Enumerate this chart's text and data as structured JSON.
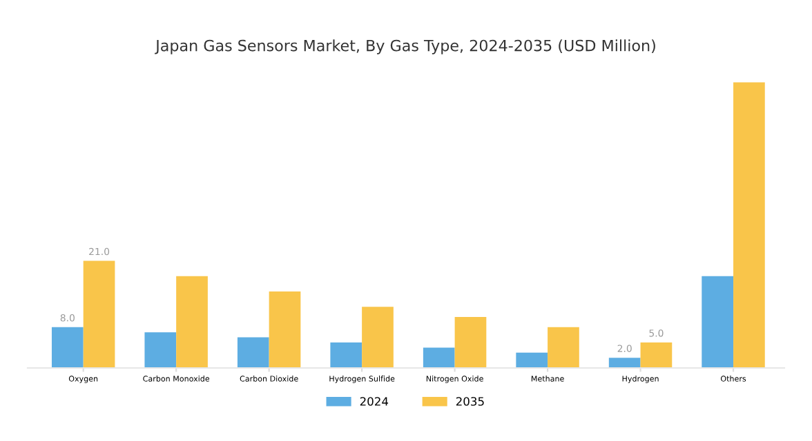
{
  "chart_data": {
    "type": "bar",
    "title": "Japan Gas Sensors Market, By Gas Type, 2024-2035 (USD Million)",
    "categories": [
      "Oxygen",
      "Carbon Monoxide",
      "Carbon Dioxide",
      "Hydrogen Sulfide",
      "Nitrogen Oxide",
      "Methane",
      "Hydrogen",
      "Others"
    ],
    "series": [
      {
        "name": "2024",
        "color": "#5dade2",
        "values": [
          8.0,
          7.0,
          6.0,
          5.0,
          4.0,
          3.0,
          2.0,
          18.0
        ],
        "value_labels": [
          "8.0",
          null,
          null,
          null,
          null,
          null,
          "2.0",
          null
        ]
      },
      {
        "name": "2035",
        "color": "#f9c54a",
        "values": [
          21.0,
          18.0,
          15.0,
          12.0,
          10.0,
          8.0,
          5.0,
          56.0
        ],
        "value_labels": [
          "21.0",
          null,
          null,
          null,
          null,
          null,
          "5.0",
          null
        ]
      }
    ],
    "tick_labels": "x",
    "grid": false,
    "legend": "bottom"
  }
}
